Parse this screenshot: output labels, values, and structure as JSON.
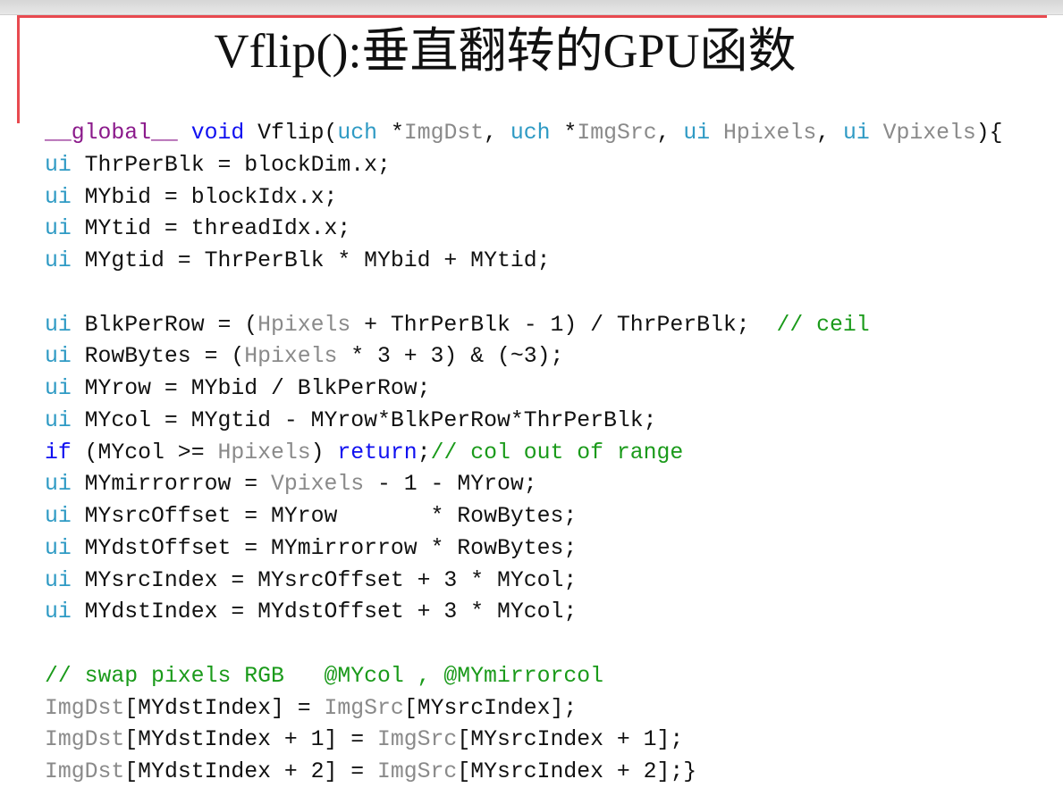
{
  "slide": {
    "title": "Vflip():垂直翻转的GPU函数",
    "accent_color": "#e84a50",
    "code_lines": [
      [
        [
          "__global__",
          "g"
        ],
        [
          " ",
          "n"
        ],
        [
          "void",
          "k"
        ],
        [
          " Vflip(",
          "n"
        ],
        [
          "uch",
          "t"
        ],
        [
          " *",
          "n"
        ],
        [
          "ImgDst",
          "p"
        ],
        [
          ", ",
          "n"
        ],
        [
          "uch",
          "t"
        ],
        [
          " *",
          "n"
        ],
        [
          "ImgSrc",
          "p"
        ],
        [
          ", ",
          "n"
        ],
        [
          "ui",
          "t"
        ],
        [
          " ",
          "n"
        ],
        [
          "Hpixels",
          "p"
        ],
        [
          ", ",
          "n"
        ],
        [
          "ui",
          "t"
        ],
        [
          " ",
          "n"
        ],
        [
          "Vpixels",
          "p"
        ],
        [
          "){",
          "n"
        ]
      ],
      [
        [
          "ui",
          "t"
        ],
        [
          " ThrPerBlk = blockDim.x;",
          "n"
        ]
      ],
      [
        [
          "ui",
          "t"
        ],
        [
          " MYbid = blockIdx.x;",
          "n"
        ]
      ],
      [
        [
          "ui",
          "t"
        ],
        [
          " MYtid = threadIdx.x;",
          "n"
        ]
      ],
      [
        [
          "ui",
          "t"
        ],
        [
          " MYgtid = ThrPerBlk * MYbid + MYtid;",
          "n"
        ]
      ],
      [],
      [
        [
          "ui",
          "t"
        ],
        [
          " BlkPerRow = (",
          "n"
        ],
        [
          "Hpixels",
          "p"
        ],
        [
          " + ThrPerBlk - 1) / ThrPerBlk;  ",
          "n"
        ],
        [
          "// ceil",
          "c"
        ]
      ],
      [
        [
          "ui",
          "t"
        ],
        [
          " RowBytes = (",
          "n"
        ],
        [
          "Hpixels",
          "p"
        ],
        [
          " * 3 + 3) & (~3);",
          "n"
        ]
      ],
      [
        [
          "ui",
          "t"
        ],
        [
          " MYrow = MYbid / BlkPerRow;",
          "n"
        ]
      ],
      [
        [
          "ui",
          "t"
        ],
        [
          " MYcol = MYgtid - MYrow*BlkPerRow*ThrPerBlk;",
          "n"
        ]
      ],
      [
        [
          "if",
          "k"
        ],
        [
          " (MYcol >= ",
          "n"
        ],
        [
          "Hpixels",
          "p"
        ],
        [
          ") ",
          "n"
        ],
        [
          "return",
          "k"
        ],
        [
          ";",
          "n"
        ],
        [
          "// col out of range",
          "c"
        ]
      ],
      [
        [
          "ui",
          "t"
        ],
        [
          " MYmirrorrow = ",
          "n"
        ],
        [
          "Vpixels",
          "p"
        ],
        [
          " - 1 - MYrow;",
          "n"
        ]
      ],
      [
        [
          "ui",
          "t"
        ],
        [
          " MYsrcOffset = MYrow       * RowBytes;",
          "n"
        ]
      ],
      [
        [
          "ui",
          "t"
        ],
        [
          " MYdstOffset = MYmirrorrow * RowBytes;",
          "n"
        ]
      ],
      [
        [
          "ui",
          "t"
        ],
        [
          " MYsrcIndex = MYsrcOffset + 3 * MYcol;",
          "n"
        ]
      ],
      [
        [
          "ui",
          "t"
        ],
        [
          " MYdstIndex = MYdstOffset + 3 * MYcol;",
          "n"
        ]
      ],
      [],
      [
        [
          "// swap pixels RGB   @MYcol , @MYmirrorcol",
          "c"
        ]
      ],
      [
        [
          "ImgDst",
          "p"
        ],
        [
          "[MYdstIndex] = ",
          "n"
        ],
        [
          "ImgSrc",
          "p"
        ],
        [
          "[MYsrcIndex];",
          "n"
        ]
      ],
      [
        [
          "ImgDst",
          "p"
        ],
        [
          "[MYdstIndex + 1] = ",
          "n"
        ],
        [
          "ImgSrc",
          "p"
        ],
        [
          "[MYsrcIndex + 1];",
          "n"
        ]
      ],
      [
        [
          "ImgDst",
          "p"
        ],
        [
          "[MYdstIndex + 2] = ",
          "n"
        ],
        [
          "ImgSrc",
          "p"
        ],
        [
          "[MYsrcIndex + 2];}",
          "n"
        ]
      ]
    ]
  }
}
